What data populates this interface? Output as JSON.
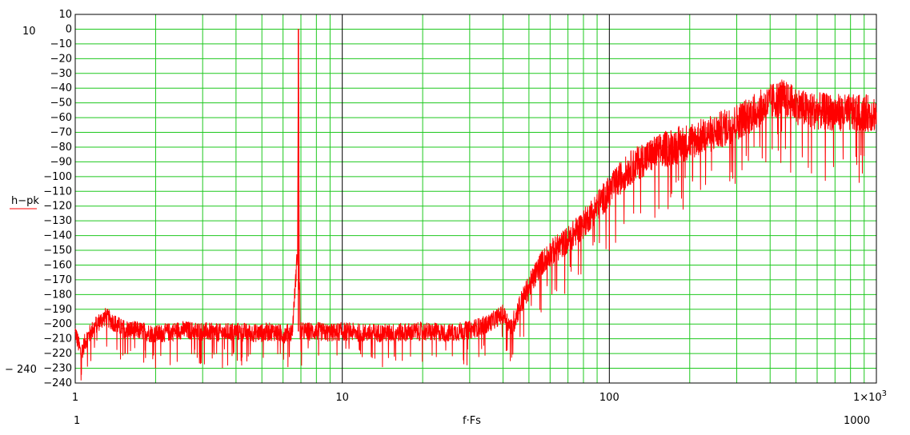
{
  "chart_data": {
    "type": "line",
    "title": "",
    "xlabel": "f·Fs",
    "ylabel": "h−pk",
    "x_scale": "log",
    "xlim": [
      1,
      1000
    ],
    "ylim": [
      -240,
      10
    ],
    "y_ticks": [
      10,
      0,
      -10,
      -20,
      -30,
      -40,
      -50,
      -60,
      -70,
      -80,
      -90,
      -100,
      -110,
      -120,
      -130,
      -140,
      -150,
      -160,
      -170,
      -180,
      -190,
      -200,
      -210,
      -220,
      -230,
      -240
    ],
    "y_tick_labels": [
      "10",
      "0",
      "−10",
      "−20",
      "−30",
      "−40",
      "−50",
      "−60",
      "−70",
      "−80",
      "−90",
      "−100",
      "−110",
      "−120",
      "−130",
      "−140",
      "−150",
      "−160",
      "−170",
      "−180",
      "−190",
      "−200",
      "−210",
      "−220",
      "−230",
      "−240"
    ],
    "x_ticks": [
      1,
      10,
      100,
      1000
    ],
    "x_tick_labels": [
      "1",
      "10",
      "100",
      "1×10"
    ],
    "x_tick_exponent": "3",
    "y_limit_labels": {
      "top": "10",
      "bottom": "− 240"
    },
    "x_limit_labels": {
      "left": "1",
      "right": "1000"
    },
    "grid": true,
    "series": [
      {
        "name": "h−pk",
        "color": "#ff0000",
        "x": [
          1,
          1.05,
          1.1,
          1.2,
          1.3,
          1.5,
          1.8,
          2,
          2.5,
          3,
          3.5,
          4,
          4.5,
          5,
          5.5,
          6,
          6.5,
          6.8,
          6.85,
          6.9,
          6.95,
          7,
          7.5,
          8,
          9,
          10,
          12,
          15,
          20,
          25,
          30,
          35,
          40,
          43,
          46,
          50,
          55,
          60,
          70,
          80,
          90,
          100,
          110,
          120,
          135,
          150,
          170,
          200,
          250,
          300,
          350,
          400,
          440,
          480,
          550,
          650,
          800,
          1000
        ],
        "y": [
          -205,
          -220,
          -210,
          -200,
          -195,
          -203,
          -205,
          -207,
          -204,
          -205,
          -206,
          -205,
          -206,
          -206,
          -205,
          -207,
          -205,
          -150,
          0,
          -150,
          -205,
          -205,
          -205,
          -205,
          -206,
          -205,
          -206,
          -206,
          -205,
          -206,
          -204,
          -200,
          -193,
          -203,
          -188,
          -175,
          -160,
          -152,
          -143,
          -132,
          -120,
          -110,
          -101,
          -94,
          -88,
          -84,
          -80,
          -76,
          -70,
          -63,
          -56,
          -50,
          -46,
          -50,
          -55,
          -56,
          -57,
          -57
        ]
      }
    ]
  }
}
